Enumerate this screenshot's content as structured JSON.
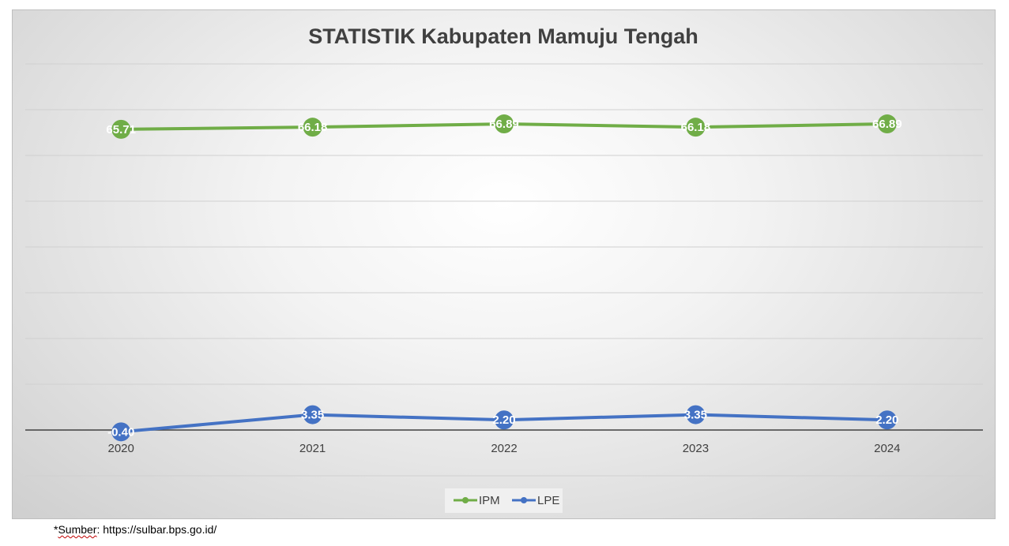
{
  "chart_data": {
    "type": "line",
    "title": "STATISTIK Kabupaten Mamuju Tengah",
    "categories": [
      "2020",
      "2021",
      "2022",
      "2023",
      "2024"
    ],
    "series": [
      {
        "name": "IPM",
        "values": [
          65.71,
          66.18,
          66.89,
          66.18,
          66.89
        ],
        "labels": [
          "65.71",
          "66.18",
          "66.89",
          "66.18",
          "66.89"
        ],
        "color": "#70ad47"
      },
      {
        "name": "LPE",
        "values": [
          -0.4,
          3.35,
          2.2,
          3.35,
          2.2
        ],
        "labels": [
          "-0.40",
          "3.35",
          "2.20",
          "3.35",
          "2.20"
        ],
        "color": "#4472c4"
      }
    ],
    "ylim": [
      -10,
      80
    ],
    "grid": true,
    "legend_position": "bottom",
    "xlabel": "",
    "ylabel": ""
  },
  "footer": {
    "source_prefix": "*",
    "source_word": "Sumber",
    "source_rest": ": https://sulbar.bps.go.id/"
  }
}
